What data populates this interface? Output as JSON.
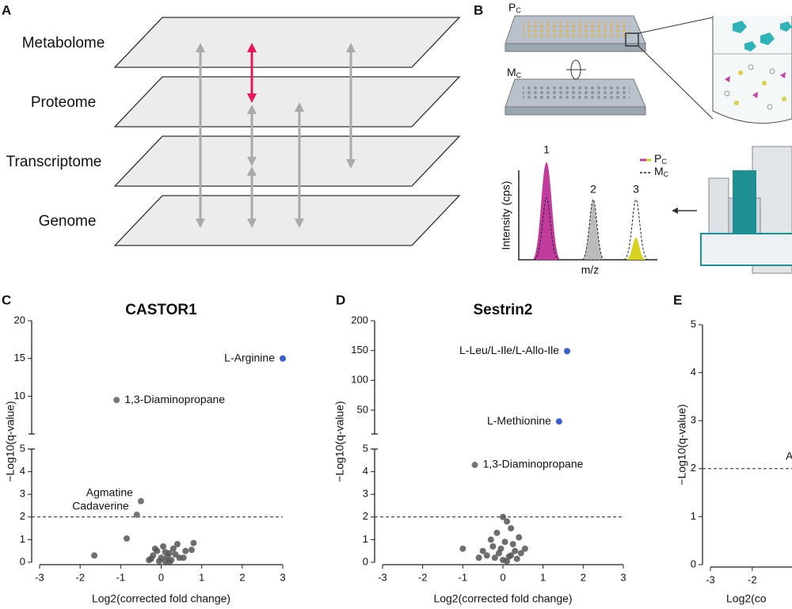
{
  "figure": {
    "panel_letters": [
      "A",
      "B",
      "C",
      "D",
      "E"
    ],
    "panel_a": {
      "layers": [
        "Metabolome",
        "Proteome",
        "Transcriptome",
        "Genome"
      ]
    },
    "panel_b": {
      "plates": [
        {
          "main": "P",
          "sub": "C"
        },
        {
          "main": "M",
          "sub": "C"
        }
      ],
      "peaks": [
        "1",
        "2",
        "3"
      ],
      "ylabel": "Intensity (cps)",
      "xlabel": "m/z",
      "legend": [
        {
          "main": "P",
          "sub": "C"
        },
        {
          "main": "M",
          "sub": "C"
        }
      ]
    }
  },
  "chart_data": [
    {
      "type": "scatter",
      "title": "CASTOR1",
      "xlabel": "Log2(corrected fold change)",
      "ylabel": "−Log10(q-value)",
      "xlim": [
        -3,
        3
      ],
      "xticks": [
        -3,
        -2,
        -1,
        0,
        1,
        2,
        3
      ],
      "ylim": [
        0,
        5
      ],
      "yticks": [
        0,
        1,
        2,
        3,
        4,
        5
      ],
      "ylim_upper": [
        5,
        20
      ],
      "yticks_upper": [
        10,
        15,
        20
      ],
      "threshold": 2,
      "points": {
        "color": "#555555",
        "x": [
          -1.65,
          -0.85,
          -0.3,
          -0.2,
          -0.1,
          0,
          0.1,
          0.2,
          0.3,
          -0.25,
          0.05,
          0.15,
          0.25,
          0.35,
          -0.05,
          0.4,
          0.45,
          0.1,
          -0.15,
          0.2,
          0.6,
          0.75,
          0.55,
          0.8
        ],
        "y": [
          0.3,
          1.05,
          0.1,
          0.3,
          0.5,
          0.2,
          0.05,
          0.4,
          0.6,
          0.15,
          0.7,
          0.25,
          0.1,
          0.35,
          0.05,
          0.8,
          0.2,
          0.45,
          0.6,
          0,
          0.5,
          0.55,
          0.2,
          0.85
        ]
      },
      "labeled": [
        {
          "label": "L-Arginine",
          "x": 3,
          "y": 15,
          "color": "#3a5fcd"
        },
        {
          "label": "1,3-Diaminopropane",
          "x": -1.1,
          "y": 9.5,
          "color": "#777777"
        },
        {
          "label": "Agmatine",
          "x": -0.5,
          "y": 2.7,
          "color": "#777777"
        },
        {
          "label": "Cadaverine",
          "x": -0.6,
          "y": 2.1,
          "color": "#777777"
        }
      ]
    },
    {
      "type": "scatter",
      "title": "Sestrin2",
      "xlabel": "Log2(corrected fold change)",
      "ylabel": "−Log10(q-value)",
      "xlim": [
        -3,
        3
      ],
      "xticks": [
        -3,
        -2,
        -1,
        0,
        1,
        2,
        3
      ],
      "ylim": [
        0,
        5
      ],
      "yticks": [
        0,
        1,
        2,
        3,
        4,
        5
      ],
      "ylim_upper": [
        10,
        200
      ],
      "yticks_upper": [
        50,
        100,
        150,
        200
      ],
      "threshold": 2,
      "points": {
        "color": "#555555",
        "x": [
          -1,
          -0.5,
          -0.3,
          -0.2,
          -0.1,
          0,
          0.1,
          0.2,
          0.3,
          0.4,
          0.55,
          0,
          0.1,
          -0.4,
          -0.25,
          0.05,
          0.15,
          0.25,
          0.35,
          -0.15,
          0.45,
          -0.05,
          0.2,
          -0.6
        ],
        "y": [
          0.6,
          0.5,
          1,
          0.2,
          0.4,
          2,
          1.8,
          0.3,
          0.5,
          1.1,
          0.6,
          0.1,
          0.05,
          0.3,
          0.7,
          0.9,
          0.25,
          0.8,
          0.15,
          1.3,
          0.4,
          0.6,
          1.5,
          0.2
        ]
      },
      "labeled": [
        {
          "label": "L-Leu/L-Ile/L-Allo-Ile",
          "x": 1.6,
          "y": 149,
          "color": "#3a5fcd"
        },
        {
          "label": "L-Methionine",
          "x": 1.4,
          "y": 31,
          "color": "#3a5fcd"
        },
        {
          "label": "1,3-Diaminopropane",
          "x": -0.7,
          "y": 4.3,
          "color": "#777777"
        }
      ]
    },
    {
      "type": "scatter",
      "xlabel": "Log2(co",
      "ylabel": "−Log10(q-value)",
      "xlim": [
        -3,
        -1.05
      ],
      "xticks": [
        -3,
        -2
      ],
      "ylim": [
        0,
        5
      ],
      "yticks": [
        0,
        1,
        2,
        3,
        4,
        5
      ],
      "threshold": 2,
      "annotation": "A"
    }
  ]
}
